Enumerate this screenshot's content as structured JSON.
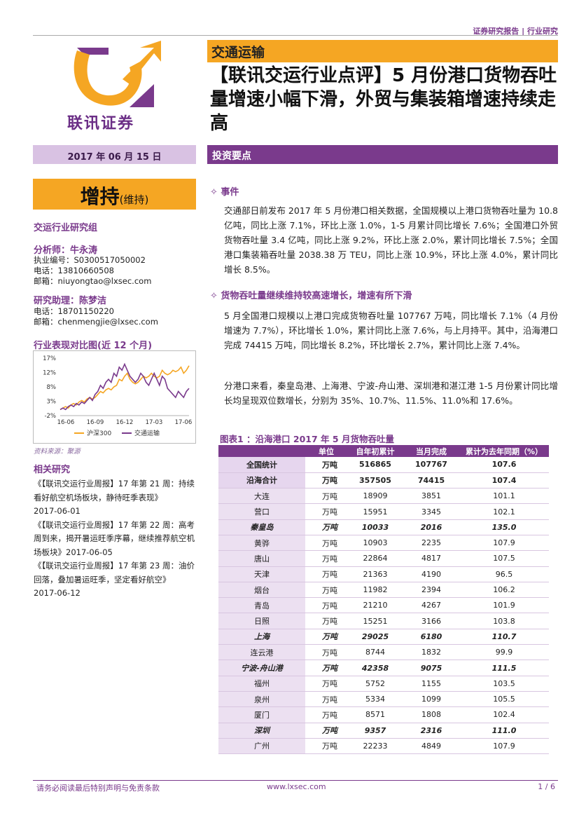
{
  "header": {
    "tag": "证券研究报告 | 行业研究",
    "logo_text": "联讯证券",
    "sector": "交通运输",
    "headline": "【联讯交运行业点评】5 月份港口货物吞吐量增速小幅下滑，外贸与集装箱增速持续走高"
  },
  "sidebar": {
    "date": "2017 年 06 月 15 日",
    "rating": "增持",
    "rating_note": "(维持)",
    "group": "交运行业研究组",
    "analyst_title": "分析师：牛永涛",
    "analyst_lines": [
      "执业编号：S0300517050002",
      "电话：13810660508",
      "邮箱：niuyongtao@lxsec.com"
    ],
    "assistant_title": "研究助理：陈梦洁",
    "assistant_lines": [
      "电话：18701150220",
      "邮箱：chenmengjie@lxsec.com"
    ],
    "chart_title": "行业表现对比图(近 12 个月)",
    "source_note": "资料来源：聚源",
    "related_title": "相关研究",
    "related_items": [
      "《【联讯交运行业周报】17 年第 21 周：持续看好航空机场板块，静待旺季表现》",
      "2017-06-01",
      "《【联讯交运行业周报】17 年第 22 周：高考周到来，揭开暑运旺季序幕，继续推荐航空机场板块》2017-06-05",
      "《【联讯交运行业周报】17 年第 23 周：油价回落，叠加暑运旺季，坚定看好航空》",
      "2017-06-12"
    ]
  },
  "chart_data": {
    "type": "line",
    "x_ticks": [
      "16-06",
      "16-09",
      "16-12",
      "17-03",
      "17-06"
    ],
    "y_ticks": [
      "17%",
      "12%",
      "8%",
      "3%",
      "-2%"
    ],
    "ylim": [
      -2,
      17
    ],
    "series": [
      {
        "name": "沪深300",
        "color": "#f5a623",
        "values": [
          0,
          0.5,
          1,
          0.5,
          1.5,
          2,
          1.5,
          2.5,
          3,
          2.5,
          3.5,
          4,
          3.5,
          4,
          5,
          6,
          5.5,
          6.5,
          7,
          6.5,
          7.5,
          8,
          10,
          9.5,
          11,
          12,
          10,
          9,
          8.5,
          9,
          10,
          11,
          10.5,
          11,
          12,
          11,
          10.5,
          11,
          13,
          12,
          11.5,
          12,
          13,
          12.5,
          13,
          14,
          12,
          13,
          14.5
        ]
      },
      {
        "name": "交通运输",
        "color": "#7a3a8c",
        "values": [
          0,
          0.5,
          0,
          1,
          1.5,
          1,
          2,
          1.5,
          2.5,
          2,
          3,
          4,
          3,
          5,
          6,
          8,
          7,
          9,
          10,
          9,
          12,
          11,
          14,
          13,
          15,
          13,
          11,
          10,
          9,
          10,
          12,
          11,
          9,
          8,
          10,
          12,
          10,
          8,
          11,
          10,
          7,
          6,
          5,
          4,
          6,
          5,
          4,
          6,
          7
        ]
      }
    ]
  },
  "main": {
    "key_points_label": "投资要点",
    "event_title": "✧ 事件",
    "event_text": "交通部日前发布 2017 年 5 月份港口相关数据，全国规模以上港口货物吞吐量为 10.8 亿吨，同比上涨 7.1%，环比上涨 1.0%，1-5 月累计同比增长 7.6%；全国港口外贸货物吞吐量 3.4 亿吨，同比上涨 9.2%，环比上涨 2.0%，累计同比增长 7.5%；全国港口集装箱吞吐量 2038.38 万 TEU，同比上涨 10.9%，环比上涨 4.0%，累计同比增长 8.5%。",
    "cargo_title": "✧ 货物吞吐量继续维持较高速增长，增速有所下滑",
    "cargo_text1": "5 月全国港口规模以上港口完成货物吞吐量 107767 万吨，同比增长 7.1%（4 月份增速为 7.7%），环比增长 1.0%，累计同比上涨 7.6%，与上月持平。其中，沿海港口完成 74415 万吨，同比增长 8.2%，环比增长 2.7%，累计同比上涨 7.4%。",
    "cargo_text2": "分港口来看，秦皇岛港、上海港、宁波-舟山港、深圳港和湛江港 1-5 月份累计同比增长均呈现双位数增长，分别为 35%、10.7%、11.5%、11.0%和 17.6%。",
    "table_title": "图表1 ：沿海港口 2017 年 5 月货物吞吐量"
  },
  "table": {
    "headers": [
      "",
      "单位",
      "自年初累计",
      "当月完成",
      "累计为去年同期（%）"
    ],
    "rows": [
      {
        "port": "全国统计",
        "unit": "万吨",
        "ytd": "516865",
        "month": "107767",
        "yoy": "107.6",
        "style": "tot"
      },
      {
        "port": "沿海合计",
        "unit": "万吨",
        "ytd": "357505",
        "month": "74415",
        "yoy": "107.4",
        "style": "tot"
      },
      {
        "port": "大连",
        "unit": "万吨",
        "ytd": "18909",
        "month": "3851",
        "yoy": "101.1",
        "style": ""
      },
      {
        "port": "营口",
        "unit": "万吨",
        "ytd": "15951",
        "month": "3345",
        "yoy": "102.1",
        "style": ""
      },
      {
        "port": "秦皇岛",
        "unit": "万吨",
        "ytd": "10033",
        "month": "2016",
        "yoy": "135.0",
        "style": "hl"
      },
      {
        "port": "黄骅",
        "unit": "万吨",
        "ytd": "10903",
        "month": "2235",
        "yoy": "107.9",
        "style": ""
      },
      {
        "port": "唐山",
        "unit": "万吨",
        "ytd": "22864",
        "month": "4817",
        "yoy": "107.5",
        "style": ""
      },
      {
        "port": "天津",
        "unit": "万吨",
        "ytd": "21363",
        "month": "4190",
        "yoy": "96.5",
        "style": ""
      },
      {
        "port": "烟台",
        "unit": "万吨",
        "ytd": "11982",
        "month": "2394",
        "yoy": "106.2",
        "style": ""
      },
      {
        "port": "青岛",
        "unit": "万吨",
        "ytd": "21210",
        "month": "4267",
        "yoy": "101.9",
        "style": ""
      },
      {
        "port": "日照",
        "unit": "万吨",
        "ytd": "15251",
        "month": "3166",
        "yoy": "103.8",
        "style": ""
      },
      {
        "port": "上海",
        "unit": "万吨",
        "ytd": "29025",
        "month": "6180",
        "yoy": "110.7",
        "style": "hl"
      },
      {
        "port": "连云港",
        "unit": "万吨",
        "ytd": "8744",
        "month": "1832",
        "yoy": "99.9",
        "style": ""
      },
      {
        "port": "宁波-舟山港",
        "unit": "万吨",
        "ytd": "42358",
        "month": "9075",
        "yoy": "111.5",
        "style": "hl"
      },
      {
        "port": "福州",
        "unit": "万吨",
        "ytd": "5752",
        "month": "1155",
        "yoy": "103.5",
        "style": ""
      },
      {
        "port": "泉州",
        "unit": "万吨",
        "ytd": "5334",
        "month": "1099",
        "yoy": "105.5",
        "style": ""
      },
      {
        "port": "厦门",
        "unit": "万吨",
        "ytd": "8571",
        "month": "1808",
        "yoy": "102.4",
        "style": ""
      },
      {
        "port": "深圳",
        "unit": "万吨",
        "ytd": "9357",
        "month": "2316",
        "yoy": "111.0",
        "style": "hl"
      },
      {
        "port": "广州",
        "unit": "万吨",
        "ytd": "22233",
        "month": "4849",
        "yoy": "107.9",
        "style": ""
      }
    ]
  },
  "footer": {
    "disclaimer": "请务必阅读最后特别声明与免责条款",
    "site": "www.lxsec.com",
    "page": "1 / 6"
  }
}
